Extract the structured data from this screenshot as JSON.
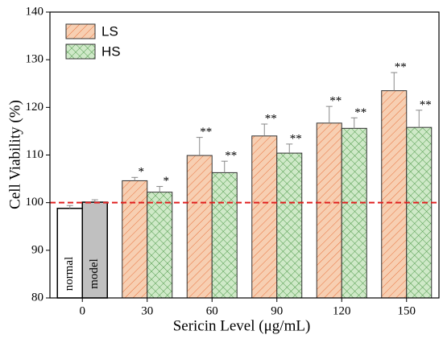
{
  "chart_data": {
    "type": "bar",
    "y_label": "Cell Viability (%)",
    "x_label": "Sericin Level (μg/mL)",
    "categories": [
      "0",
      "30",
      "60",
      "90",
      "120",
      "150"
    ],
    "controls": [
      {
        "label": "normal",
        "value": 98.8,
        "error": 0.6,
        "color": "#ffffff"
      },
      {
        "label": "model",
        "value": 100.1,
        "error": 0.5,
        "color": "#c0c0c0"
      }
    ],
    "series": [
      {
        "name": "LS",
        "color": "#f7cfb2",
        "hatch": "#e8703a",
        "values": [
          null,
          104.6,
          109.9,
          114.0,
          116.7,
          123.5
        ],
        "errors": [
          null,
          0.7,
          3.8,
          2.5,
          3.5,
          3.8
        ],
        "annotations": [
          null,
          "*",
          "**",
          "**",
          "**",
          "**"
        ]
      },
      {
        "name": "HS",
        "color": "#cfe9c8",
        "hatch": "#4f9a4a",
        "values": [
          null,
          102.2,
          106.3,
          110.4,
          115.6,
          115.8
        ],
        "errors": [
          null,
          1.2,
          2.4,
          1.9,
          2.2,
          3.6
        ],
        "annotations": [
          null,
          "*",
          "**",
          "**",
          "**",
          "**"
        ]
      }
    ],
    "reference_line": {
      "value": 100,
      "color": "#e02020"
    },
    "ylim": [
      80,
      140
    ],
    "yticks": [
      80,
      90,
      100,
      110,
      120,
      130,
      140
    ]
  }
}
